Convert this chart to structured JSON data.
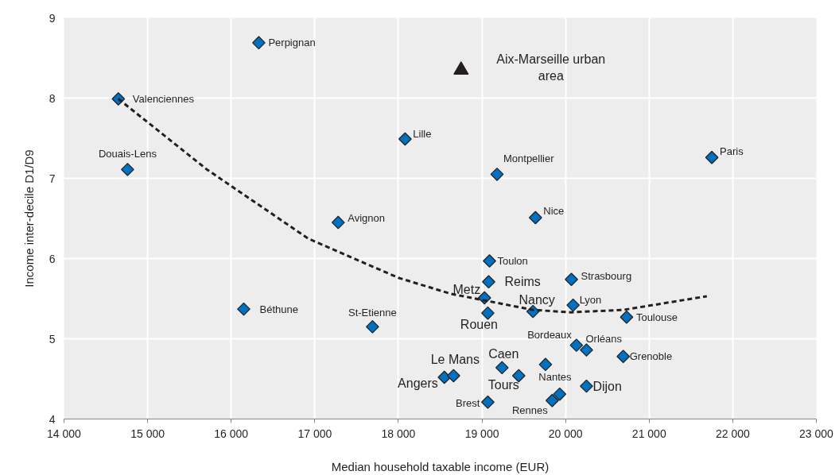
{
  "chart_data": {
    "type": "scatter",
    "xlabel": "Median household taxable income (EUR)",
    "ylabel": "Income inter-decile D1/D9",
    "xlim": [
      14000,
      23000
    ],
    "ylim": [
      4,
      9
    ],
    "xticks": [
      {
        "value": 14000,
        "label": "14 000"
      },
      {
        "value": 15000,
        "label": "15 000"
      },
      {
        "value": 16000,
        "label": "16 000"
      },
      {
        "value": 17000,
        "label": "17 000"
      },
      {
        "value": 18000,
        "label": "18 000"
      },
      {
        "value": 19000,
        "label": "19 000"
      },
      {
        "value": 20000,
        "label": "20 000"
      },
      {
        "value": 21000,
        "label": "21 000"
      },
      {
        "value": 22000,
        "label": "22 000"
      },
      {
        "value": 23000,
        "label": "23 000"
      }
    ],
    "yticks": [
      4,
      5,
      6,
      7,
      8,
      9
    ],
    "grid": true,
    "series": [
      {
        "marker": "diamond",
        "color": "#0070c0",
        "x": [
          16330,
          14650,
          14760,
          18080,
          17280,
          19180,
          21750,
          19640,
          16150,
          17690,
          18550,
          18660,
          19090,
          19080,
          19030,
          19070,
          19610,
          20070,
          20090,
          20730,
          20130,
          20250,
          20690,
          19240,
          19440,
          19760,
          20250,
          19070,
          19840,
          19930
        ],
        "values": [
          8.69,
          7.99,
          7.11,
          7.49,
          6.45,
          7.05,
          7.26,
          6.51,
          5.37,
          5.15,
          4.52,
          4.54,
          5.97,
          5.71,
          5.51,
          5.32,
          5.34,
          5.74,
          5.42,
          5.27,
          4.92,
          4.86,
          4.78,
          4.64,
          4.54,
          4.68,
          4.41,
          4.21,
          4.23,
          4.31
        ]
      },
      {
        "marker": "triangle",
        "color": "#231f20",
        "x": [
          18750
        ],
        "values": [
          8.35
        ]
      },
      {
        "type": "line",
        "marker": "none",
        "line_style": "dashed",
        "color": "#231f20",
        "x": [
          14650,
          15710,
          16920,
          18000,
          18630,
          19610,
          20060,
          20690,
          21690
        ],
        "values": [
          7.99,
          7.11,
          6.25,
          5.76,
          5.56,
          5.36,
          5.33,
          5.36,
          5.53
        ]
      }
    ],
    "annotations": [
      {
        "text": "Perpignan",
        "x": 16330,
        "y": 8.69
      },
      {
        "text": "Valenciennes",
        "x": 14650,
        "y": 7.99
      },
      {
        "text": "Douais-Lens",
        "x": 14760,
        "y": 7.11
      },
      {
        "text": "Lille",
        "x": 18080,
        "y": 7.49
      },
      {
        "text": "Avignon",
        "x": 17280,
        "y": 6.45
      },
      {
        "text": "Aix-Marseille urban area",
        "x": 18750,
        "y": 8.35
      },
      {
        "text": "Montpellier",
        "x": 19180,
        "y": 7.05
      },
      {
        "text": "Béthune",
        "x": 16150,
        "y": 5.37
      },
      {
        "text": "St-Etienne",
        "x": 17690,
        "y": 5.15
      },
      {
        "text": "Paris",
        "x": 21750,
        "y": 7.26
      },
      {
        "text": "Nice",
        "x": 19640,
        "y": 6.51
      },
      {
        "text": "Toulon",
        "x": 19090,
        "y": 5.97
      },
      {
        "text": "Reims",
        "x": 19080,
        "y": 5.71
      },
      {
        "text": "Metz",
        "x": 19030,
        "y": 5.51
      },
      {
        "text": "Rouen",
        "x": 19070,
        "y": 5.32
      },
      {
        "text": "Nancy",
        "x": 19610,
        "y": 5.34
      },
      {
        "text": "Strasbourg",
        "x": 20070,
        "y": 5.74
      },
      {
        "text": "Lyon",
        "x": 20090,
        "y": 5.42
      },
      {
        "text": "Toulouse",
        "x": 20730,
        "y": 5.27
      },
      {
        "text": "Bordeaux",
        "x": 20130,
        "y": 4.92
      },
      {
        "text": "Orléans",
        "x": 20250,
        "y": 4.86
      },
      {
        "text": "Grenoble",
        "x": 20690,
        "y": 4.78
      },
      {
        "text": "Caen",
        "x": 19240,
        "y": 4.64
      },
      {
        "text": "Le Mans",
        "x": 18660,
        "y": 4.54
      },
      {
        "text": "Angers",
        "x": 18550,
        "y": 4.52
      },
      {
        "text": "Tours",
        "x": 19440,
        "y": 4.54
      },
      {
        "text": "Nantes",
        "x": 19760,
        "y": 4.68
      },
      {
        "text": "Dijon",
        "x": 20250,
        "y": 4.41
      },
      {
        "text": "Brest",
        "x": 19070,
        "y": 4.21
      },
      {
        "text": "Rennes",
        "x": 19840,
        "y": 4.23
      }
    ]
  }
}
